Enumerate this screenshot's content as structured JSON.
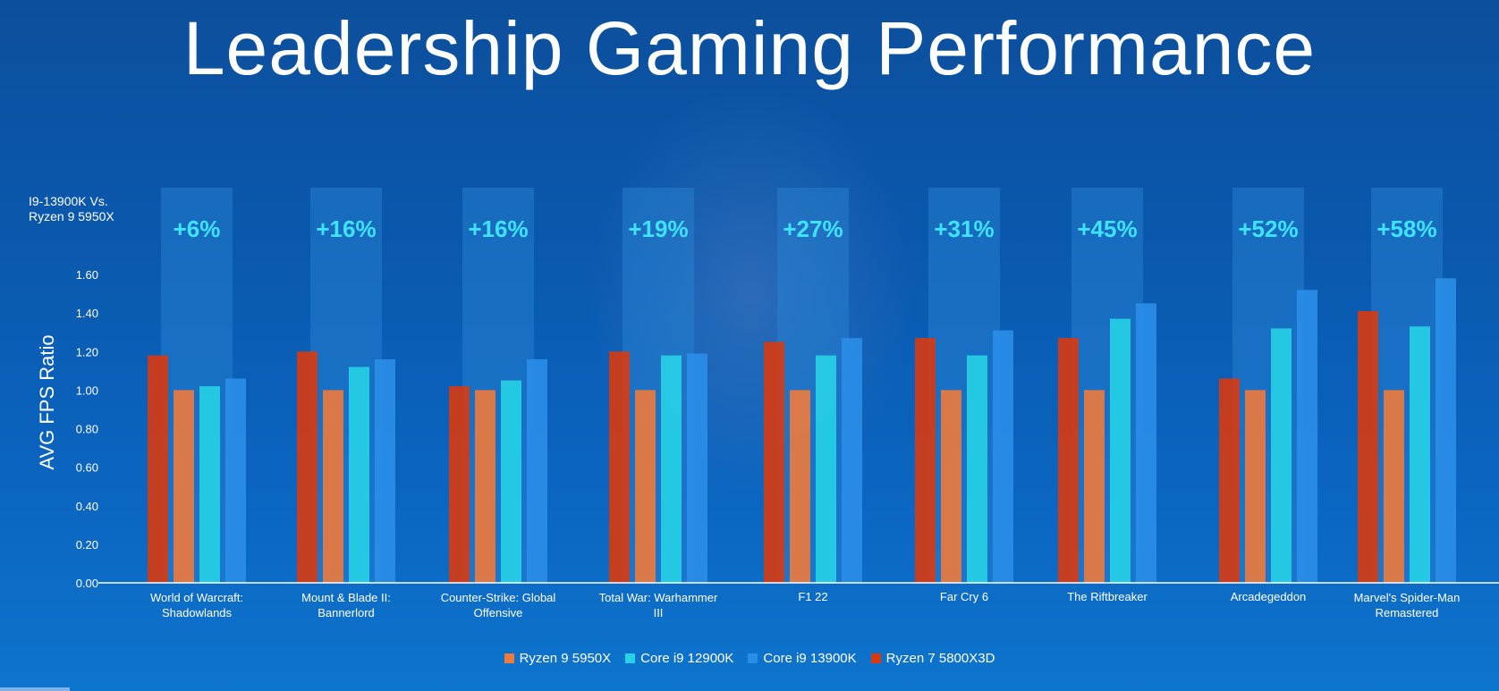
{
  "page": {
    "title": "Leadership Gaming Performance",
    "comparison_label": "I9-13900K Vs. Ryzen 9 5950X"
  },
  "colors": {
    "Ryzen 7 5800X3D": "#d83a10",
    "Ryzen 9 5950X": "#ee7a3c",
    "Core i9 12900K": "#27d2e6",
    "Core i9 13900K": "#2a8ee8",
    "uplift_text": "#3fe3ff",
    "uplift_column": "#2a86d4"
  },
  "chart_data": {
    "type": "bar",
    "title": "Leadership Gaming Performance",
    "ylabel": "AVG  FPS Ratio",
    "xlabel": "",
    "ylim": [
      0,
      1.6
    ],
    "yticks": [
      "0.00",
      "0.20",
      "0.40",
      "0.60",
      "0.80",
      "1.00",
      "1.20",
      "1.40",
      "1.60"
    ],
    "categories": [
      "World of Warcraft: Shadowlands",
      "Mount & Blade II: Bannerlord",
      "Counter-Strike: Global Offensive",
      "Total War: Warhammer III",
      "F1 22",
      "Far Cry 6",
      "The Riftbreaker",
      "Arcadegeddon",
      "Marvel's Spider-Man Remastered"
    ],
    "uplift_labels": [
      "+6%",
      "+16%",
      "+16%",
      "+19%",
      "+27%",
      "+31%",
      "+45%",
      "+52%",
      "+58%"
    ],
    "series": [
      {
        "name": "Ryzen 7 5800X3D",
        "values": [
          1.18,
          1.2,
          1.02,
          1.2,
          1.25,
          1.27,
          1.27,
          1.06,
          1.41
        ]
      },
      {
        "name": "Ryzen 9 5950X",
        "values": [
          1.0,
          1.0,
          1.0,
          1.0,
          1.0,
          1.0,
          1.0,
          1.0,
          1.0
        ]
      },
      {
        "name": "Core i9 12900K",
        "values": [
          1.02,
          1.12,
          1.05,
          1.18,
          1.18,
          1.18,
          1.37,
          1.32,
          1.33
        ]
      },
      {
        "name": "Core i9 13900K",
        "values": [
          1.06,
          1.16,
          1.16,
          1.19,
          1.27,
          1.31,
          1.45,
          1.52,
          1.58
        ]
      }
    ],
    "legend": [
      "Ryzen 9 5950X",
      "Core i9 12900K",
      "Core i9 13900K",
      "Ryzen 7 5800X3D"
    ],
    "legend_position": "bottom-center",
    "grid": false
  }
}
